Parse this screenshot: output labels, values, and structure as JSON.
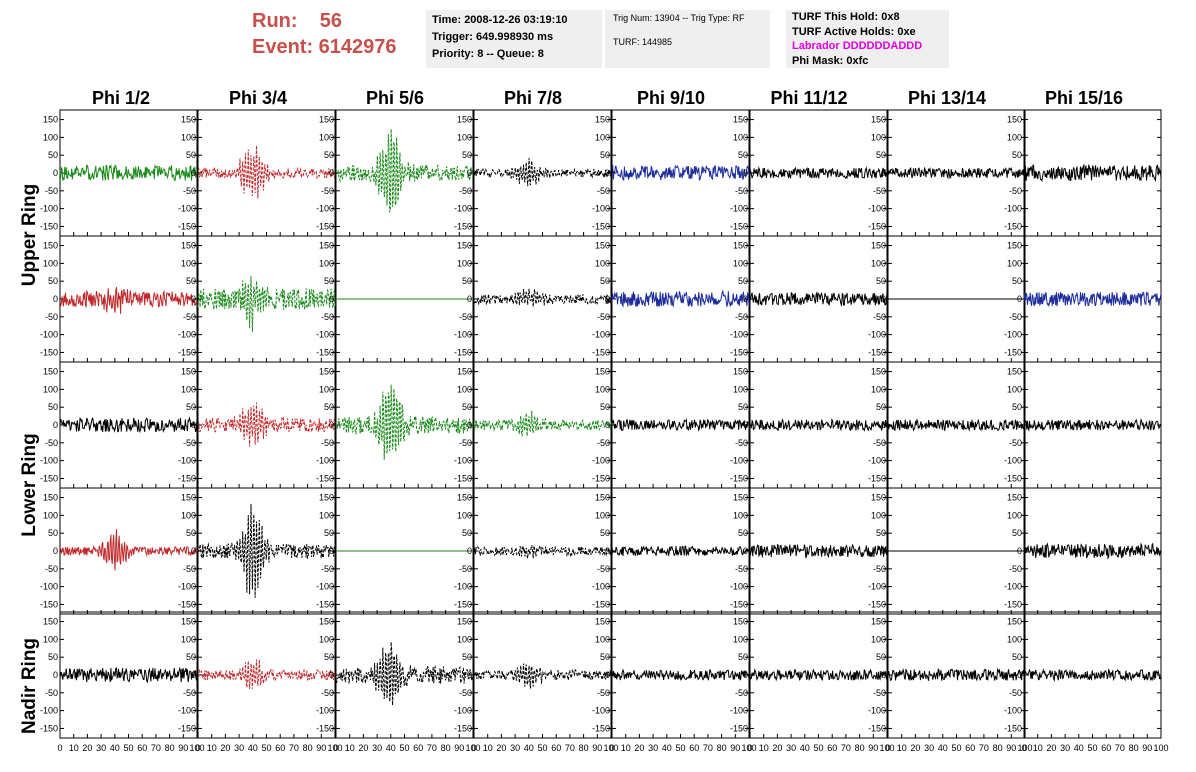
{
  "header": {
    "run_label": "Run:    56",
    "event_label": "Event: 6142976",
    "time": "Time: 2008-12-26 03:19:10",
    "trigger": "Trigger: 649.998930 ms",
    "priority": "Priority: 8 -- Queue: 8",
    "trig_num": "Trig Num: 13904 -- Trig Type: RF",
    "turf": "TURF: 144985",
    "turf_hold": "TURF This Hold: 0x8",
    "turf_active": "TURF Active Holds: 0xe",
    "labrador": "Labrador DDDDDDADDD",
    "phi_mask": "Phi Mask: 0xfc"
  },
  "colors": {
    "header_red": "#c8504b",
    "labrador": "#e000e0",
    "panel_bg": "#efefef",
    "green": "#1a8a1a",
    "red": "#c0282a",
    "blue": "#1c2c9c",
    "black": "#000000"
  },
  "chart_data": {
    "type": "line",
    "columns": [
      "Phi 1/2",
      "Phi 3/4",
      "Phi 5/6",
      "Phi 7/8",
      "Phi 9/10",
      "Phi 11/12",
      "Phi 13/14",
      "Phi 15/16"
    ],
    "row_labels": [
      {
        "label": "Upper Ring",
        "rows": [
          0,
          1
        ]
      },
      {
        "label": "Lower Ring",
        "rows": [
          2,
          3
        ]
      },
      {
        "label": "Nadir Ring",
        "rows": [
          4
        ]
      }
    ],
    "ylim": [
      -160,
      160
    ],
    "xlim": [
      0,
      100
    ],
    "yticks": [
      -150,
      -100,
      -50,
      0,
      50,
      100,
      150
    ],
    "ytick_labels": [
      "-150",
      "-100",
      "-50",
      "0",
      "50",
      "100",
      "150"
    ],
    "xticks": [
      0,
      10,
      20,
      30,
      40,
      50,
      60,
      70,
      80,
      90,
      100
    ],
    "xtick_labels": [
      "0",
      "10",
      "20",
      "30",
      "40",
      "50",
      "60",
      "70",
      "80",
      "90",
      "100"
    ],
    "panels": [
      [
        {
          "color": "green",
          "style": "solid",
          "amp": 22,
          "burst": 0
        },
        {
          "color": "red",
          "style": "dashed",
          "amp": 14,
          "burst": 80
        },
        {
          "color": "green",
          "style": "dashed",
          "amp": 22,
          "burst": 150
        },
        {
          "color": "black",
          "style": "dashed",
          "amp": 12,
          "burst": 50
        },
        {
          "color": "blue",
          "style": "solid",
          "amp": 20,
          "burst": 0
        },
        {
          "color": "black",
          "style": "solid",
          "amp": 15,
          "burst": 0
        },
        {
          "color": "black",
          "style": "solid",
          "amp": 14,
          "burst": 0
        },
        {
          "color": "black",
          "style": "solid",
          "amp": 22,
          "burst": 0
        }
      ],
      [
        {
          "color": "red",
          "style": "solid",
          "amp": 22,
          "burst": 35
        },
        {
          "color": "green",
          "style": "dashed",
          "amp": 30,
          "burst": 90
        },
        {
          "color": "green",
          "style": "solid",
          "amp": 0,
          "burst": 0
        },
        {
          "color": "black",
          "style": "dashed",
          "amp": 14,
          "burst": 25
        },
        {
          "color": "blue",
          "style": "solid",
          "amp": 22,
          "burst": 0
        },
        {
          "color": "black",
          "style": "solid",
          "amp": 18,
          "burst": 0
        },
        {
          "color": "black",
          "style": "solid",
          "amp": 0,
          "burst": 0
        },
        {
          "color": "blue",
          "style": "solid",
          "amp": 20,
          "burst": 0
        }
      ],
      [
        {
          "color": "black",
          "style": "solid",
          "amp": 20,
          "burst": 0
        },
        {
          "color": "red",
          "style": "dashed",
          "amp": 20,
          "burst": 60
        },
        {
          "color": "green",
          "style": "dashed",
          "amp": 25,
          "burst": 140
        },
        {
          "color": "green",
          "style": "dashed",
          "amp": 15,
          "burst": 40
        },
        {
          "color": "black",
          "style": "solid",
          "amp": 15,
          "burst": 0
        },
        {
          "color": "black",
          "style": "solid",
          "amp": 15,
          "burst": 0
        },
        {
          "color": "black",
          "style": "solid",
          "amp": 15,
          "burst": 0
        },
        {
          "color": "black",
          "style": "solid",
          "amp": 15,
          "burst": 0
        }
      ],
      [
        {
          "color": "red",
          "style": "solid",
          "amp": 12,
          "burst": 60
        },
        {
          "color": "black",
          "style": "dashed",
          "amp": 20,
          "burst": 140
        },
        {
          "color": "green",
          "style": "solid",
          "amp": 0,
          "burst": 0
        },
        {
          "color": "black",
          "style": "dashed",
          "amp": 12,
          "burst": 15
        },
        {
          "color": "black",
          "style": "solid",
          "amp": 14,
          "burst": 0
        },
        {
          "color": "black",
          "style": "solid",
          "amp": 18,
          "burst": 0
        },
        {
          "color": "black",
          "style": "solid",
          "amp": 0,
          "burst": 0
        },
        {
          "color": "black",
          "style": "solid",
          "amp": 20,
          "burst": 0
        }
      ],
      [
        {
          "color": "black",
          "style": "solid",
          "amp": 20,
          "burst": 0
        },
        {
          "color": "red",
          "style": "dashed",
          "amp": 14,
          "burst": 45
        },
        {
          "color": "black",
          "style": "dashed",
          "amp": 25,
          "burst": 110
        },
        {
          "color": "black",
          "style": "dashed",
          "amp": 14,
          "burst": 40
        },
        {
          "color": "black",
          "style": "solid",
          "amp": 14,
          "burst": 0
        },
        {
          "color": "black",
          "style": "solid",
          "amp": 15,
          "burst": 0
        },
        {
          "color": "black",
          "style": "solid",
          "amp": 16,
          "burst": 0
        },
        {
          "color": "black",
          "style": "solid",
          "amp": 15,
          "burst": 0
        }
      ]
    ]
  }
}
